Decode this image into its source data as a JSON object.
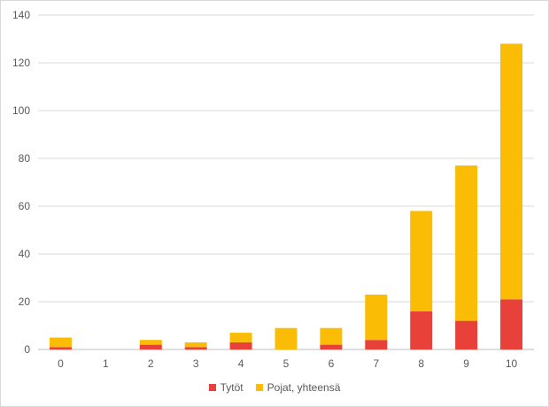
{
  "chart_data": {
    "type": "bar",
    "stacked": true,
    "categories": [
      "0",
      "1",
      "2",
      "3",
      "4",
      "5",
      "6",
      "7",
      "8",
      "9",
      "10"
    ],
    "series": [
      {
        "name": "Tytöt",
        "color": "#e8413a",
        "values": [
          1,
          0,
          2,
          1,
          3,
          0,
          2,
          4,
          16,
          12,
          21
        ]
      },
      {
        "name": "Pojat, yhteensä",
        "color": "#fbbc05",
        "values": [
          4,
          0,
          2,
          2,
          4,
          9,
          7,
          19,
          42,
          65,
          107
        ]
      }
    ],
    "ylim": [
      0,
      140
    ],
    "yticks": [
      0,
      20,
      40,
      60,
      80,
      100,
      120,
      140
    ],
    "grid": true,
    "legend_position": "bottom"
  }
}
